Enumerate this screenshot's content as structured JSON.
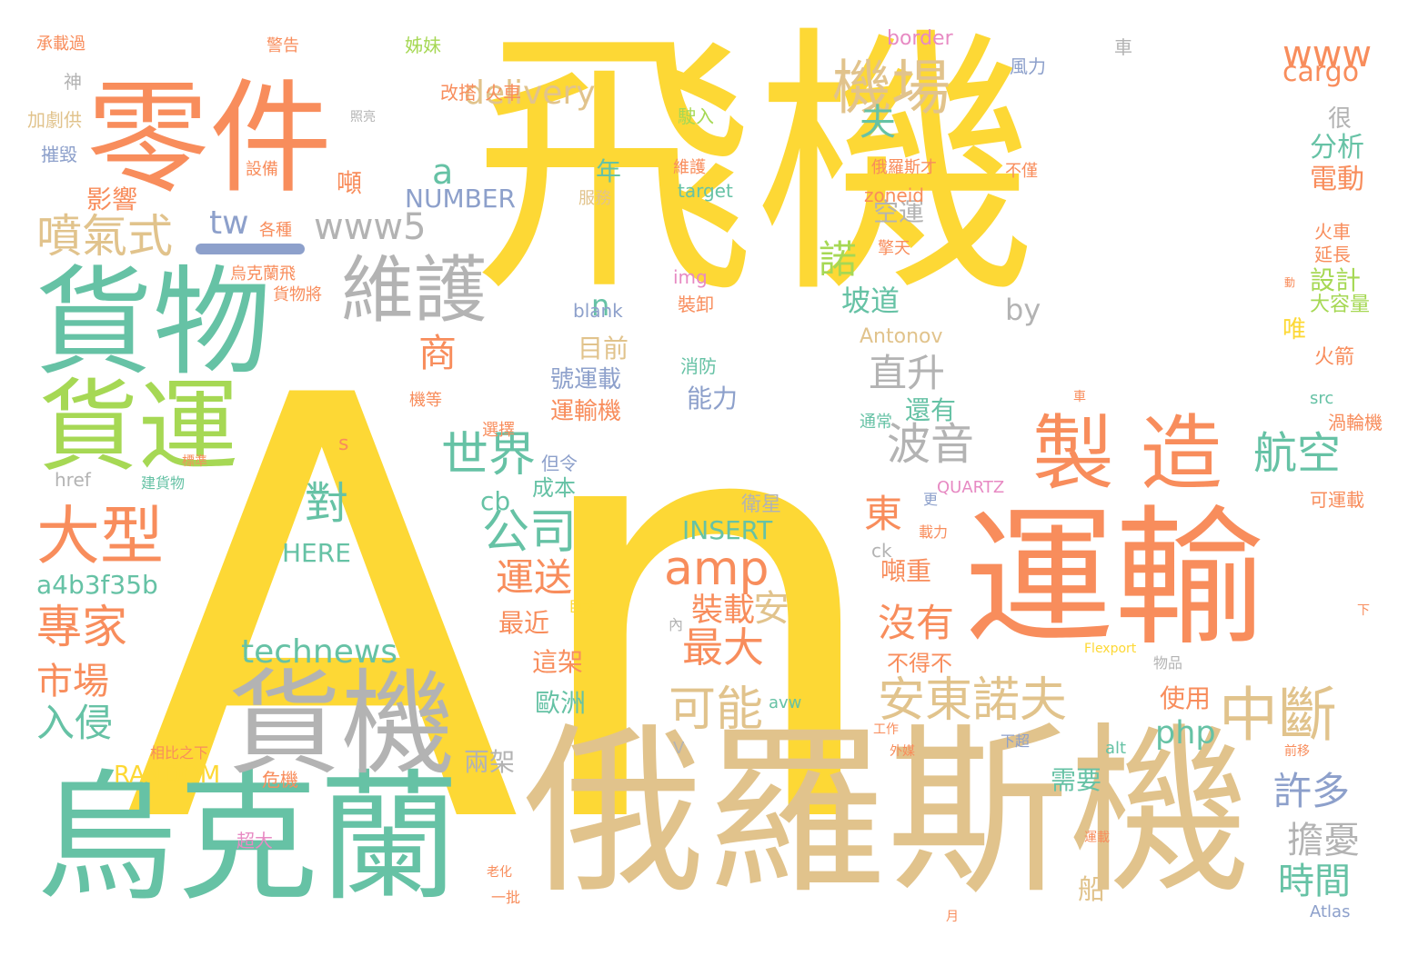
{
  "colors": {
    "yellow": "#fdd835",
    "orange": "#f88d5c",
    "green": "#66c2a5",
    "tan": "#e1c38c",
    "gray": "#b3b3b3",
    "lime": "#a6d854",
    "blue": "#8da0cb",
    "pink": "#e78ac3"
  },
  "words": {
    "an": "An",
    "feiji": "飛機",
    "lingjian": "零件",
    "huowu": "貨物",
    "huoyun": "貨運",
    "yunshu": "運輸",
    "eluosiji": "俄羅斯機",
    "wukelan": "烏克蘭",
    "huoji": "貨機",
    "zhizao": "製 造",
    "weihu": "維護",
    "jichang": "機場",
    "daxing": "大型",
    "penqishi": "噴氣式",
    "zhuanjia": "專家",
    "shichang": "市場",
    "ruqin": "入侵",
    "boyin": "波音",
    "shijie": "世界",
    "gongsi": "公司",
    "amp": "amp",
    "andongnuofu": "安東諾夫",
    "zhongduan": "中斷",
    "keneng": "可能",
    "zuida": "最大",
    "technews": "technews",
    "www5": "www5",
    "www": "www",
    "tw": "tw",
    "delivery": "delivery",
    "cargo": "cargo",
    "hangkong": "航空",
    "zhisheng": "直升",
    "yunsong": "運送",
    "dui": "對",
    "a4b": "a4b3f35b",
    "fu": "夫",
    "shang": "商",
    "yingxiang": "影響",
    "nian": "年",
    "NUMBER": "NUMBER",
    "INSERT": "INSERT",
    "HERE": "HERE",
    "RANDOM": "RANDOM",
    "dong": "東",
    "nuo": "諾",
    "meiyou": "沒有",
    "zhuangzai": "裝載",
    "an2": "安",
    "php": "php",
    "xuduo": "許多",
    "shijian": "時間",
    "danyou": "擔憂",
    "fenxi": "分析",
    "diandong": "電動",
    "sheji": "設計",
    "kongyun": "空運",
    "podao": "坡道",
    "nengli": "能力",
    "muqian": "目前",
    "haoyunzai": "號運載",
    "yunshuji": "運輸機",
    "huanyou": "還有",
    "chengben": "成本",
    "zuijin": "最近",
    "zhejia": "這架",
    "ouzhou": "歐洲",
    "liangjia": "兩架",
    "xuyao": "需要",
    "shiyong": "使用",
    "chuan": "船",
    "cb": "cb",
    "by": "by",
    "n": "n",
    "a": "a",
    "dun": "噸",
    "dunzhong": "噸重",
    "buyidebu": "不得不",
    "hen": "很",
    "wei": "唯",
    "huojian": "火箭",
    "yanchang": "延長",
    "huoche": "火車",
    "dajiliang": "大容量",
    "wolunji": "渦輪機",
    "keyunzai": "可運載",
    "fuxing": "衛星",
    "Antonov": "Antonov",
    "QUARTZ": "QUARTZ",
    "blank": "blank",
    "img": "img",
    "target": "target",
    "zoneid": "zoneid",
    "border": "border",
    "href": "href",
    "src": "src",
    "alt": "alt",
    "avw": "avw",
    "Atlas": "Atlas",
    "Flexport": "Flexport",
    "ck": "ck",
    "s": "s",
    "v": "V",
    "chengzaiguo": "承載過",
    "shen": "神",
    "jiajugong": "加劇供",
    "cuihui": "摧毀",
    "jingao": "警告",
    "zimei": "姊妹",
    "gaida": "改搭",
    "huoche2": "火車",
    "shebei": "設備",
    "gezhong": "各種",
    "wukelanfei": "烏克蘭飛",
    "huowujiang": "貨物將",
    "fuwu": "服務",
    "weihu2": "維護",
    "elsicai": "俄羅斯才",
    "fengli": "風力",
    "buquan": "不僅",
    "jiaotian": "擎天",
    "xiaxing": "下超",
    "geli": "隔離",
    "shiru": "駛入",
    "zhuangxie": "裝卸",
    "xiaofang": "消防",
    "danling": "但令",
    "xuanze": "選擇",
    "jizhe": "機等",
    "weiji": "危機",
    "zhanjiao": "建貨物",
    "chaoda": "超大",
    "biaozhun": "標準",
    "xiangbizhixia": "相比之下",
    "juda": "巨大",
    "nei": "內",
    "zairli": "載力",
    "geng": "更",
    "gongzuo": "工作",
    "waimai": "外媒",
    "qianyi": "前移",
    "tongchang": "通常",
    "che": "車",
    "dongjiang": "動",
    "wupin": "物品",
    "xia": "下",
    "yue": "月",
    "che2": "車",
    "yunzai": "運載",
    "yipi": "一批",
    "laohua": "老化",
    "zhaoliang": "照亮"
  }
}
